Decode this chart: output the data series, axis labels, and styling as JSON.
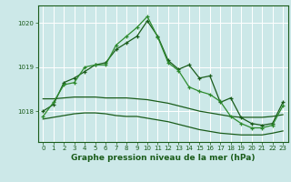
{
  "title": "Graphe pression niveau de la mer (hPa)",
  "bg_color": "#cce8e8",
  "grid_color": "#ffffff",
  "line_color_dark": "#1a5c1a",
  "line_color_mid": "#2e8b2e",
  "xlim": [
    -0.5,
    23.5
  ],
  "ylim": [
    1017.3,
    1020.4
  ],
  "yticks": [
    1018,
    1019,
    1020
  ],
  "xticks": [
    0,
    1,
    2,
    3,
    4,
    5,
    6,
    7,
    8,
    9,
    10,
    11,
    12,
    13,
    14,
    15,
    16,
    17,
    18,
    19,
    20,
    21,
    22,
    23
  ],
  "series1": [
    1018.0,
    1018.15,
    1018.65,
    1018.75,
    1018.9,
    1019.05,
    1019.1,
    1019.4,
    1019.55,
    1019.7,
    1020.05,
    1019.7,
    1019.15,
    1018.95,
    1019.05,
    1018.75,
    1018.8,
    1018.2,
    1018.3,
    1017.85,
    1017.72,
    1017.68,
    1017.72,
    1018.2
  ],
  "series2": [
    1017.88,
    1018.2,
    1018.6,
    1018.65,
    1019.0,
    1019.05,
    1019.05,
    1019.5,
    1019.7,
    1019.9,
    1020.15,
    1019.68,
    1019.1,
    1018.92,
    1018.55,
    1018.45,
    1018.38,
    1018.22,
    1017.88,
    1017.72,
    1017.62,
    1017.62,
    1017.68,
    1018.12
  ],
  "series3_upper": [
    1018.28,
    1018.28,
    1018.3,
    1018.32,
    1018.32,
    1018.32,
    1018.3,
    1018.3,
    1018.3,
    1018.28,
    1018.26,
    1018.22,
    1018.18,
    1018.12,
    1018.06,
    1018.0,
    1017.96,
    1017.92,
    1017.88,
    1017.86,
    1017.86,
    1017.86,
    1017.88,
    1017.92
  ],
  "series3_lower": [
    1017.82,
    1017.86,
    1017.9,
    1017.94,
    1017.96,
    1017.96,
    1017.94,
    1017.9,
    1017.88,
    1017.88,
    1017.84,
    1017.8,
    1017.76,
    1017.7,
    1017.64,
    1017.58,
    1017.54,
    1017.5,
    1017.48,
    1017.46,
    1017.46,
    1017.46,
    1017.5,
    1017.55
  ]
}
